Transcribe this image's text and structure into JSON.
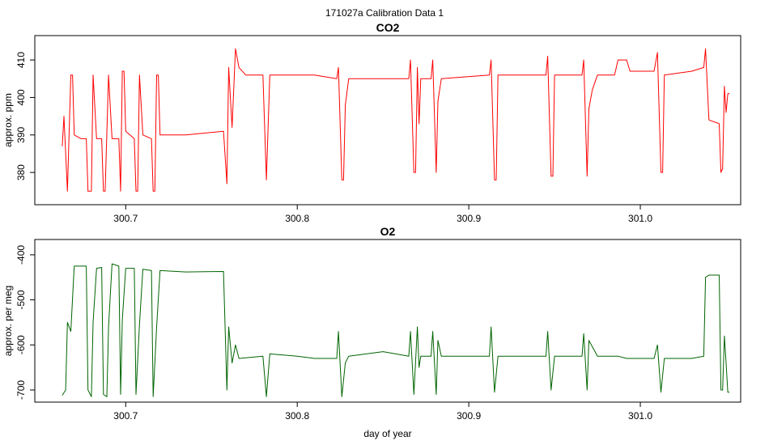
{
  "title": "171027a   Calibration Data 1",
  "chart_data": [
    {
      "type": "line",
      "title": "CO2",
      "y_label": "approx. ppm",
      "color": "#ff0000",
      "xlim": [
        300.647,
        301.0585
      ],
      "xticks": [
        300.7,
        300.8,
        300.9,
        {
          "value": 301,
          "label": "301.0"
        }
      ],
      "ylim": [
        371.4,
        416.5
      ],
      "yticks": [
        380,
        390,
        400,
        410
      ],
      "x": [
        300.663,
        300.664,
        300.666,
        300.668,
        300.669,
        300.67,
        300.674,
        300.677,
        300.678,
        300.68,
        300.681,
        300.683,
        300.686,
        300.687,
        300.688,
        300.69,
        300.692,
        300.696,
        300.697,
        300.698,
        300.699,
        300.7,
        300.705,
        300.706,
        300.707,
        300.708,
        300.71,
        300.715,
        300.716,
        300.717,
        300.718,
        300.719,
        300.72,
        300.735,
        300.757,
        300.759,
        300.76,
        300.762,
        300.764,
        300.766,
        300.77,
        300.78,
        300.782,
        300.784,
        300.8,
        300.81,
        300.823,
        300.824,
        300.826,
        300.827,
        300.828,
        300.83,
        300.85,
        300.865,
        300.866,
        300.868,
        300.869,
        300.87,
        300.871,
        300.872,
        300.878,
        300.879,
        300.881,
        300.882,
        300.884,
        300.912,
        300.913,
        300.915,
        300.916,
        300.917,
        300.93,
        300.945,
        300.946,
        300.948,
        300.949,
        300.95,
        300.966,
        300.967,
        300.969,
        300.97,
        300.972,
        300.975,
        300.985,
        300.987,
        300.992,
        300.994,
        301.008,
        301.01,
        301.012,
        301.013,
        301.014,
        301.03,
        301.037,
        301.038,
        301.04,
        301.046,
        301.047,
        301.048,
        301.049,
        301.05,
        301.051,
        301.052
      ],
      "values": [
        387,
        395,
        375,
        406,
        406,
        390,
        389,
        389,
        375,
        375,
        406,
        389,
        389,
        375,
        375,
        406,
        389,
        389,
        375,
        407,
        407,
        391,
        389,
        375,
        375,
        406,
        390,
        389,
        375,
        375,
        406,
        406,
        390,
        390,
        391,
        377,
        408,
        392,
        413,
        408,
        406,
        406,
        378,
        406,
        406,
        406,
        405,
        408,
        378,
        378,
        398,
        405,
        405,
        405,
        410,
        380,
        380,
        408,
        393,
        405,
        405,
        410,
        380,
        399,
        405,
        406,
        410,
        378,
        378,
        406,
        406,
        406,
        411,
        379,
        379,
        406,
        406,
        410,
        379,
        397,
        402,
        406,
        406,
        410,
        410,
        407,
        407,
        412,
        380,
        380,
        406,
        407,
        408,
        413,
        394,
        393,
        380,
        381,
        403,
        396,
        401,
        401
      ]
    },
    {
      "type": "line",
      "title": "O2",
      "y_label": "approx. per meg",
      "x_label": "day of year",
      "color": "#006400",
      "xlim": [
        300.647,
        301.0585
      ],
      "xticks": [
        300.7,
        300.8,
        300.9,
        {
          "value": 301,
          "label": "301.0"
        }
      ],
      "ylim": [
        -727,
        -366
      ],
      "yticks": [
        -400,
        -500,
        -600,
        -700
      ],
      "x": [
        300.663,
        300.665,
        300.666,
        300.668,
        300.67,
        300.677,
        300.678,
        300.68,
        300.681,
        300.683,
        300.686,
        300.687,
        300.689,
        300.69,
        300.692,
        300.696,
        300.697,
        300.698,
        300.7,
        300.705,
        300.706,
        300.708,
        300.71,
        300.715,
        300.716,
        300.718,
        300.72,
        300.735,
        300.757,
        300.759,
        300.76,
        300.762,
        300.764,
        300.766,
        300.78,
        300.782,
        300.784,
        300.8,
        300.81,
        300.823,
        300.824,
        300.826,
        300.828,
        300.83,
        300.85,
        300.865,
        300.866,
        300.868,
        300.87,
        300.871,
        300.872,
        300.878,
        300.879,
        300.881,
        300.882,
        300.884,
        300.912,
        300.913,
        300.915,
        300.917,
        300.945,
        300.946,
        300.948,
        300.95,
        300.966,
        300.967,
        300.969,
        300.97,
        300.975,
        300.987,
        300.992,
        301.008,
        301.01,
        301.012,
        301.014,
        301.03,
        301.037,
        301.038,
        301.04,
        301.046,
        301.047,
        301.048,
        301.049,
        301.05,
        301.051,
        301.052
      ],
      "values": [
        -712,
        -700,
        -550,
        -570,
        -425,
        -425,
        -700,
        -715,
        -550,
        -430,
        -428,
        -710,
        -715,
        -560,
        -420,
        -425,
        -710,
        -545,
        -430,
        -430,
        -710,
        -555,
        -432,
        -435,
        -715,
        -560,
        -435,
        -438,
        -437,
        -700,
        -560,
        -640,
        -600,
        -630,
        -625,
        -715,
        -620,
        -625,
        -630,
        -630,
        -570,
        -715,
        -640,
        -625,
        -615,
        -625,
        -570,
        -710,
        -560,
        -650,
        -625,
        -625,
        -570,
        -710,
        -590,
        -625,
        -625,
        -560,
        -705,
        -625,
        -625,
        -570,
        -700,
        -625,
        -625,
        -575,
        -700,
        -590,
        -625,
        -625,
        -630,
        -630,
        -600,
        -705,
        -630,
        -630,
        -625,
        -450,
        -445,
        -445,
        -700,
        -700,
        -580,
        -640,
        -705,
        -705
      ]
    }
  ]
}
